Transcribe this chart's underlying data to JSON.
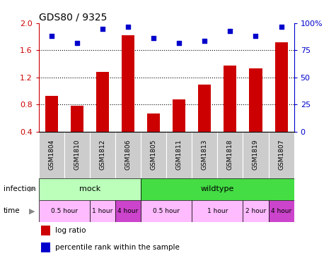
{
  "title": "GDS80 / 9325",
  "samples": [
    "GSM1804",
    "GSM1810",
    "GSM1812",
    "GSM1806",
    "GSM1805",
    "GSM1811",
    "GSM1813",
    "GSM1818",
    "GSM1819",
    "GSM1807"
  ],
  "log_ratio": [
    0.93,
    0.78,
    1.28,
    1.82,
    0.67,
    0.88,
    1.09,
    1.38,
    1.33,
    1.72
  ],
  "percentile": [
    88,
    82,
    95,
    97,
    86,
    82,
    84,
    93,
    88,
    97
  ],
  "ylim": [
    0.4,
    2.0
  ],
  "yticks": [
    0.4,
    0.8,
    1.2,
    1.6,
    2.0
  ],
  "right_yticks": [
    0,
    25,
    50,
    75,
    100
  ],
  "bar_color": "#cc0000",
  "dot_color": "#0000cc",
  "infection_mock_color": "#bbffbb",
  "infection_wildtype_color": "#44dd44",
  "time_light_color": "#ffbbff",
  "time_dark_color": "#cc44cc",
  "sample_bg_color": "#cccccc",
  "mock_indices": [
    0,
    1,
    2,
    3
  ],
  "wildtype_indices": [
    4,
    5,
    6,
    7,
    8,
    9
  ],
  "time_groups": [
    {
      "label": "0.5 hour",
      "start": 0,
      "end": 1,
      "dark": false
    },
    {
      "label": "1 hour",
      "start": 2,
      "end": 2,
      "dark": false
    },
    {
      "label": "4 hour",
      "start": 3,
      "end": 3,
      "dark": true
    },
    {
      "label": "0.5 hour",
      "start": 4,
      "end": 5,
      "dark": false
    },
    {
      "label": "1 hour",
      "start": 6,
      "end": 7,
      "dark": false
    },
    {
      "label": "2 hour",
      "start": 8,
      "end": 8,
      "dark": false
    },
    {
      "label": "4 hour",
      "start": 9,
      "end": 9,
      "dark": true
    }
  ]
}
